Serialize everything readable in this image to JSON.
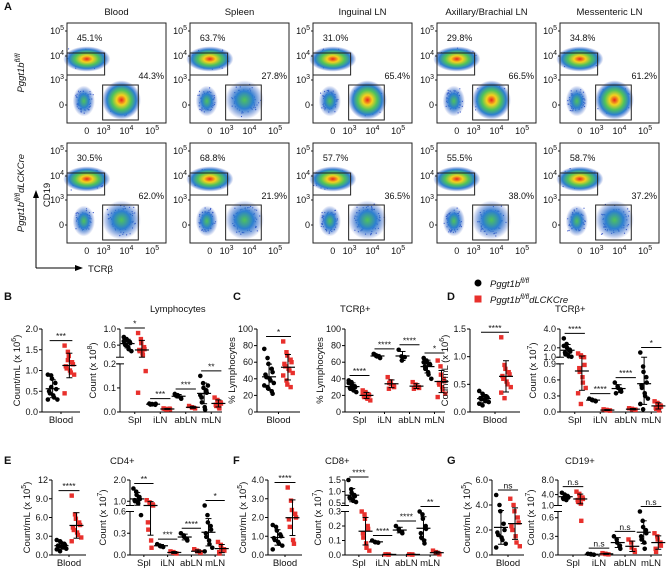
{
  "colors": {
    "wt": "#000000",
    "ko": "#e8302c",
    "gate": "#222222"
  },
  "legend": {
    "wt": {
      "base": "Pggt1b",
      "sup": "fl/fl",
      "suffix": ""
    },
    "ko": {
      "base": "Pggt1b",
      "sup": "fl/fl",
      "suffix": "dLCKCre"
    }
  },
  "flow": {
    "letter": "A",
    "x_label": "TCRβ",
    "y_label": "CD19",
    "columns": [
      "Blood",
      "Spleen",
      "Inguinal LN",
      "Axillary/Brachial LN",
      "Messenteric LN"
    ],
    "y_ticks": [
      "10^5",
      "10^4",
      "10^3",
      "0"
    ],
    "x_ticks": [
      "0",
      "10^3",
      "10^4",
      "10^5"
    ],
    "rows": [
      {
        "label": {
          "base": "Pggt1b",
          "sup": "fl/fl",
          "suffix": ""
        },
        "b_pct": [
          "45.1%",
          "63.7%",
          "31.0%",
          "29.8%",
          "34.8%"
        ],
        "t_pct": [
          "44.3%",
          "27.8%",
          "65.4%",
          "66.5%",
          "61.2%"
        ]
      },
      {
        "label": {
          "base": "Pggt1b",
          "sup": "fl/fl",
          "suffix": "dLCKCre"
        },
        "b_pct": [
          "30.5%",
          "68.8%",
          "57.7%",
          "55.5%",
          "58.7%"
        ],
        "t_pct": [
          "62.0%",
          "21.9%",
          "36.5%",
          "38.0%",
          "37.2%"
        ]
      }
    ]
  },
  "panels": [
    {
      "letter": "B",
      "title": "Lymphocytes"
    },
    {
      "letter": "C",
      "title": "TCRβ+"
    },
    {
      "letter": "D",
      "title": "TCRβ+"
    },
    {
      "letter": "E",
      "title": "CD4+"
    },
    {
      "letter": "F",
      "title": "CD8+"
    },
    {
      "letter": "G",
      "title": "CD19+"
    }
  ],
  "chart_data": [
    {
      "id": "B1",
      "type": "scatter",
      "ylabel": "Count/mL (x 10^6)",
      "ylim": [
        0,
        2
      ],
      "yticks": [
        "0.0",
        "0.5",
        "1.0",
        "1.5",
        "2.0"
      ],
      "categories": [
        "Blood"
      ],
      "wt": [
        [
          0.9,
          0.88,
          0.8,
          0.7,
          0.55,
          0.5,
          0.45,
          0.4,
          0.35,
          0.3,
          0.3,
          0.6
        ]
      ],
      "ko": [
        [
          1.6,
          1.45,
          1.35,
          1.2,
          1.15,
          1.1,
          1.05,
          1.0,
          0.95,
          0.9,
          0.45,
          1.25
        ]
      ],
      "sig": [
        "***"
      ]
    },
    {
      "id": "B2",
      "type": "scatter",
      "ylabel": "Count (x 10^8)",
      "break": {
        "lower": [
          0,
          0.2
        ],
        "upper": [
          0.3,
          1.0
        ],
        "lower_ticks": [
          "0.0",
          "0.1",
          "0.2"
        ],
        "upper_ticks": [
          "0.6",
          "1.0"
        ]
      },
      "categories": [
        "Spl",
        "iLN",
        "abLN",
        "mLN"
      ],
      "wt": [
        [
          0.8,
          0.75,
          0.72,
          0.68,
          0.65,
          0.62,
          0.6,
          0.55,
          0.5,
          0.45,
          0.7
        ],
        [
          0.035,
          0.033,
          0.032,
          0.03,
          0.034,
          0.031
        ],
        [
          0.075,
          0.07,
          0.065,
          0.06,
          0.055,
          0.068
        ],
        [
          0.15,
          0.12,
          0.1,
          0.09,
          0.08,
          0.06,
          0.04,
          0.02,
          0.01,
          0.11,
          0.07
        ]
      ],
      "ko": [
        [
          0.9,
          0.75,
          0.65,
          0.55,
          0.5,
          0.48,
          0.45,
          0.4,
          0.35,
          0.17,
          0.08
        ],
        [
          0.015,
          0.012,
          0.01,
          0.014,
          0.011,
          0.013
        ],
        [
          0.025,
          0.02,
          0.018,
          0.015
        ],
        [
          0.06,
          0.05,
          0.045,
          0.04,
          0.035,
          0.03,
          0.025,
          0.02,
          0.015
        ]
      ],
      "sig": [
        "*",
        "***",
        "***",
        "**"
      ]
    },
    {
      "id": "C1",
      "type": "scatter",
      "ylabel": "% Lymphocytes",
      "ylim": [
        0,
        100
      ],
      "yticks": [
        "0",
        "20",
        "40",
        "60",
        "80",
        "100"
      ],
      "categories": [
        "Blood"
      ],
      "wt": [
        [
          76,
          65,
          58,
          52,
          48,
          45,
          42,
          40,
          38,
          35,
          32,
          30,
          28,
          25,
          22
        ]
      ],
      "ko": [
        [
          85,
          72,
          68,
          63,
          60,
          58,
          55,
          52,
          50,
          47,
          44,
          38,
          33,
          30
        ]
      ],
      "sig": [
        "*"
      ]
    },
    {
      "id": "C2",
      "type": "scatter",
      "ylabel": "% Lymphocytes",
      "ylim": [
        0,
        100
      ],
      "yticks": [
        "0",
        "20",
        "40",
        "60",
        "80",
        "100"
      ],
      "categories": [
        "Spl",
        "iLN",
        "abLN",
        "mLN"
      ],
      "wt": [
        [
          38,
          36,
          33,
          31,
          30,
          29,
          28,
          27,
          26,
          24,
          35
        ],
        [
          70,
          68,
          67,
          66,
          65,
          69
        ],
        [
          75,
          67,
          62,
          66
        ],
        [
          65,
          62,
          60,
          58,
          57,
          55,
          52,
          48,
          45,
          40,
          60
        ]
      ],
      "ko": [
        [
          26,
          24,
          22,
          21,
          20,
          19,
          18,
          17,
          16,
          14,
          23
        ],
        [
          42,
          37,
          34,
          32,
          30,
          28,
          35
        ],
        [
          36,
          33,
          31,
          30,
          29,
          28
        ],
        [
          62,
          55,
          45,
          40,
          37,
          35,
          33,
          30,
          27,
          22,
          18
        ]
      ],
      "sig": [
        "****",
        "****",
        "****",
        "*"
      ]
    },
    {
      "id": "D1",
      "type": "scatter",
      "ylabel": "Count/mL (x 10^6)",
      "ylim": [
        0,
        1.5
      ],
      "yticks": [
        "0.0",
        "0.5",
        "1.0",
        "1.5"
      ],
      "categories": [
        "Blood"
      ],
      "wt": [
        [
          0.38,
          0.33,
          0.3,
          0.28,
          0.26,
          0.25,
          0.23,
          0.22,
          0.2,
          0.18,
          0.15,
          0.12
        ]
      ],
      "ko": [
        [
          1.35,
          0.85,
          0.78,
          0.72,
          0.68,
          0.65,
          0.6,
          0.55,
          0.5,
          0.45,
          0.35,
          0.25
        ]
      ],
      "sig": [
        "****"
      ]
    },
    {
      "id": "D2",
      "type": "scatter",
      "ylabel": "Count (x 10^7)",
      "break": {
        "lower": [
          0,
          0.9
        ],
        "upper": [
          1.0,
          4.0
        ],
        "lower_ticks": [
          "0.0",
          "0.3",
          "0.6",
          "0.9"
        ],
        "upper_ticks": [
          "1.0",
          "2.0",
          "4.0"
        ]
      },
      "categories": [
        "Spl",
        "iLN",
        "abLN",
        "mLN"
      ],
      "wt": [
        [
          3.0,
          2.4,
          2.0,
          1.8,
          1.6,
          1.5,
          1.3,
          1.2,
          1.1,
          1.05,
          2.2
        ],
        [
          0.25,
          0.23,
          0.22,
          0.21,
          0.2
        ],
        [
          0.55,
          0.48,
          0.45,
          0.42,
          0.38,
          0.35
        ],
        [
          1.5,
          0.85,
          0.75,
          0.65,
          0.55,
          0.5,
          0.45,
          0.35,
          0.3,
          0.25,
          0.15,
          0.05
        ]
      ],
      "ko": [
        [
          1.4,
          1.2,
          1.05,
          0.95,
          0.88,
          0.82,
          0.75,
          0.65,
          0.55,
          0.45,
          0.35,
          0.15
        ],
        [
          0.05,
          0.04,
          0.035,
          0.03,
          0.025
        ],
        [
          0.07,
          0.06,
          0.05,
          0.045,
          0.04
        ],
        [
          0.2,
          0.17,
          0.15,
          0.12,
          0.1,
          0.08,
          0.06,
          0.03
        ]
      ],
      "sig": [
        "****",
        "****",
        "****",
        "*"
      ]
    },
    {
      "id": "E1",
      "type": "scatter",
      "ylabel": "Count/mL (x 10^5)",
      "ylim": [
        0,
        12
      ],
      "yticks": [
        "0.0",
        "3.0",
        "6.0",
        "9.0",
        "12"
      ],
      "categories": [
        "Blood"
      ],
      "wt": [
        [
          2.4,
          2.2,
          2.0,
          1.8,
          1.6,
          1.5,
          1.4,
          1.3,
          1.2,
          1.0,
          0.9,
          0.6
        ]
      ],
      "ko": [
        [
          9.5,
          6.5,
          5.8,
          5.2,
          4.8,
          4.4,
          4.0,
          3.6,
          3.2,
          2.8,
          2.2
        ]
      ],
      "sig": [
        "****"
      ]
    },
    {
      "id": "E2",
      "type": "scatter",
      "ylabel": "Count (x 10^7)",
      "break": {
        "lower": [
          0,
          0.6
        ],
        "upper": [
          0.8,
          2.0
        ],
        "lower_ticks": [
          "0.0",
          "0.3",
          "0.6"
        ],
        "upper_ticks": [
          "1.0",
          "2.0"
        ]
      },
      "categories": [
        "Spl",
        "iLN",
        "abLN",
        "mLN"
      ],
      "wt": [
        [
          1.6,
          1.45,
          1.3,
          1.2,
          1.1,
          1.05,
          1.0,
          0.95,
          0.9,
          0.55
        ],
        [
          0.15,
          0.13,
          0.12,
          0.11
        ],
        [
          0.3,
          0.27,
          0.25,
          0.22,
          0.2
        ],
        [
          0.65,
          0.55,
          0.45,
          0.4,
          0.35,
          0.3,
          0.25,
          0.2,
          0.15,
          0.1,
          0.05
        ]
      ],
      "ko": [
        [
          1.05,
          0.95,
          0.9,
          0.85,
          0.8,
          0.45,
          0.35,
          0.2,
          0.1
        ],
        [
          0.05,
          0.04,
          0.03,
          0.02
        ],
        [
          0.08,
          0.06,
          0.05,
          0.04,
          0.03
        ],
        [
          0.18,
          0.14,
          0.1,
          0.08,
          0.06,
          0.04,
          0.02
        ]
      ],
      "sig": [
        "**",
        "***",
        "****",
        "*"
      ]
    },
    {
      "id": "F1",
      "type": "scatter",
      "ylabel": "Count/mL (x 10^5)",
      "ylim": [
        0,
        4
      ],
      "yticks": [
        "0.0",
        "1.0",
        "2.0",
        "3.0",
        "4.0"
      ],
      "categories": [
        "Blood"
      ],
      "wt": [
        [
          1.6,
          1.5,
          1.3,
          1.1,
          1.0,
          0.9,
          0.8,
          0.7,
          0.6,
          0.5,
          0.3
        ]
      ],
      "ko": [
        [
          3.6,
          2.9,
          2.4,
          2.2,
          2.0,
          1.9,
          1.5,
          0.8,
          0.6
        ]
      ],
      "sig": [
        "****"
      ]
    },
    {
      "id": "F2",
      "type": "scatter",
      "ylabel": "Count (x 10^7)",
      "break": {
        "lower": [
          0,
          0.3
        ],
        "upper": [
          0.4,
          1.5
        ],
        "lower_ticks": [
          "0.0",
          "0.1",
          "0.2",
          "0.3"
        ],
        "upper_ticks": [
          "0.5",
          "1.0",
          "1.5"
        ]
      },
      "categories": [
        "Spl",
        "iLN",
        "abLN",
        "mLN"
      ],
      "wt": [
        [
          1.5,
          1.1,
          0.95,
          0.85,
          0.8,
          0.75,
          0.7,
          0.65,
          0.6,
          0.55
        ],
        [
          0.1,
          0.09,
          0.088,
          0.085
        ],
        [
          0.2,
          0.18,
          0.17,
          0.16,
          0.15
        ],
        [
          0.3,
          0.28,
          0.25,
          0.2,
          0.18,
          0.15,
          0.12,
          0.1,
          0.08
        ]
      ],
      "ko": [
        [
          0.3,
          0.28,
          0.25,
          0.2,
          0.18,
          0.15,
          0.12,
          0.08,
          0.05,
          0.03
        ],
        [
          0.005,
          0.004,
          0.003
        ],
        [
          0.005,
          0.004,
          0.003
        ],
        [
          0.03,
          0.02,
          0.015,
          0.01,
          0.005
        ]
      ],
      "sig": [
        "****",
        "****",
        "****",
        "**"
      ]
    },
    {
      "id": "G1",
      "type": "scatter",
      "ylabel": "Count/mL (x 10^5)",
      "ylim": [
        0,
        6
      ],
      "yticks": [
        "0.0",
        "2.0",
        "4.0",
        "6.0"
      ],
      "categories": [
        "Blood"
      ],
      "wt": [
        [
          4.8,
          4.0,
          3.5,
          2.5,
          2.0,
          1.8,
          1.6,
          1.4,
          1.2,
          0.9,
          0.6
        ]
      ],
      "ko": [
        [
          4.5,
          4.0,
          3.5,
          3.0,
          2.6,
          2.3,
          2.0,
          1.5,
          1.0,
          0.7
        ]
      ],
      "sig": [
        "ns"
      ]
    },
    {
      "id": "G2",
      "type": "scatter",
      "ylabel": "Count (x 10^7)",
      "break": {
        "lower": [
          0,
          0.7
        ],
        "upper": [
          1.0,
          8.0
        ],
        "lower_ticks": [
          "0.0",
          "0.3",
          "0.6"
        ],
        "upper_ticks": [
          "1.0",
          "4.0",
          "8.0"
        ]
      },
      "categories": [
        "Spl",
        "iLN",
        "abLN",
        "mLN"
      ],
      "wt": [
        [
          4.5,
          4.0,
          3.8,
          3.5,
          3.2,
          3.0,
          2.8,
          2.5
        ],
        [
          0.02,
          0.015,
          0.01,
          0.005
        ],
        [
          0.3,
          0.25,
          0.2,
          0.15,
          0.1
        ],
        [
          0.7,
          0.55,
          0.45,
          0.4,
          0.35,
          0.3,
          0.25,
          0.2,
          0.1
        ]
      ],
      "ko": [
        [
          4.8,
          4.2,
          3.6,
          3.2,
          2.8,
          2.5,
          2.0,
          1.5,
          0.55
        ],
        [
          0.03,
          0.02,
          0.015,
          0.01
        ],
        [
          0.25,
          0.2,
          0.12,
          0.08,
          0.05
        ],
        [
          0.35,
          0.3,
          0.25,
          0.2,
          0.15,
          0.1,
          0.05
        ]
      ],
      "sig": [
        "n.s",
        "n.s",
        "n.s",
        "n.s"
      ]
    }
  ]
}
